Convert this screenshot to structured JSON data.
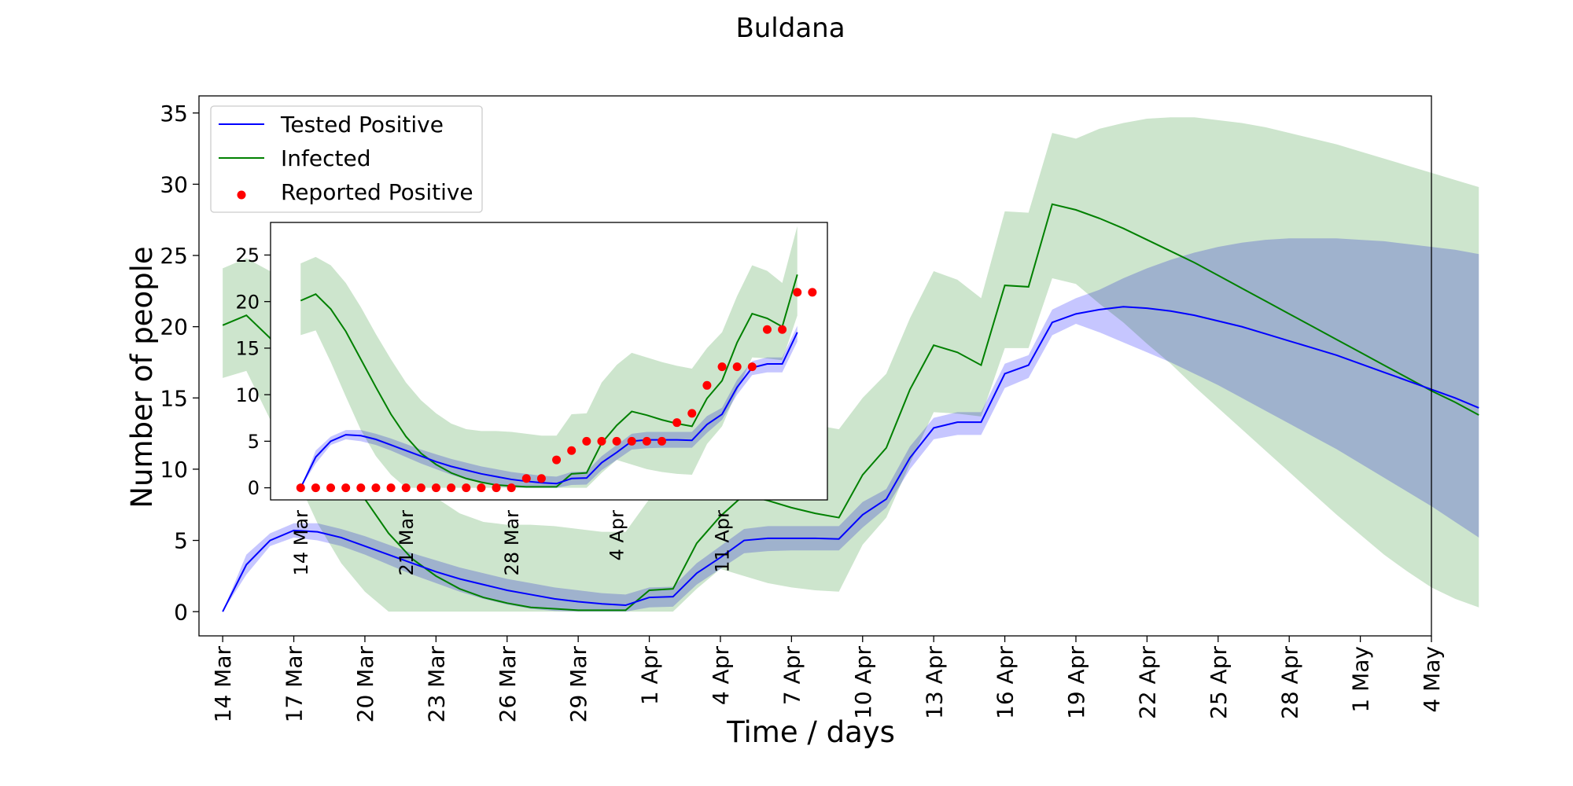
{
  "chart_data": [
    {
      "type": "line",
      "title": "Buldana",
      "xlabel": "Time / days",
      "ylabel": "Number of people",
      "xlim": [
        "2020-03-13",
        "2020-05-04"
      ],
      "ylim": [
        -1.7,
        36.2
      ],
      "x_ticks": [
        "14 Mar",
        "17 Mar",
        "20 Mar",
        "23 Mar",
        "26 Mar",
        "29 Mar",
        "1 Apr",
        "4 Apr",
        "7 Apr",
        "10 Apr",
        "13 Apr",
        "16 Apr",
        "19 Apr",
        "22 Apr",
        "25 Apr",
        "28 Apr",
        "1 May",
        "4 May"
      ],
      "y_ticks": [
        0,
        5,
        10,
        15,
        20,
        25,
        30,
        35
      ],
      "x_start": "2020-03-14",
      "legend": {
        "position": "top-left",
        "entries": [
          "Tested Positive",
          "Infected",
          "Reported Positive"
        ]
      },
      "colors": {
        "tested": "#0000ff",
        "tested_band": "#bcbcff",
        "infected": "#008000",
        "infected_band": "#cde5cd"
      },
      "series": [
        {
          "name": "Tested Positive",
          "values": [
            0,
            3.3,
            5.0,
            5.7,
            5.6,
            5.2,
            4.6,
            4.0,
            3.4,
            2.8,
            2.3,
            1.9,
            1.5,
            1.2,
            0.9,
            0.7,
            0.55,
            0.45,
            1.0,
            1.05,
            2.7,
            3.8,
            5.0,
            5.15,
            5.15,
            5.15,
            5.1,
            6.8,
            7.9,
            10.8,
            12.9,
            13.3,
            13.3,
            16.7,
            17.3,
            20.3,
            20.9,
            21.2,
            21.4,
            21.3,
            21.1,
            20.8,
            20.4,
            20.0,
            19.5,
            19.0,
            18.5,
            18.0,
            17.4,
            16.8,
            16.2,
            15.6,
            15.0,
            14.3
          ],
          "band_low": [
            0,
            2.6,
            4.6,
            5.2,
            5.0,
            4.6,
            4.0,
            3.3,
            2.6,
            2.0,
            1.4,
            0.9,
            0.5,
            0.2,
            0.05,
            0.0,
            0.0,
            0.0,
            0.3,
            0.35,
            1.9,
            3.0,
            4.1,
            4.25,
            4.3,
            4.3,
            4.3,
            5.9,
            7.3,
            10.0,
            12.1,
            12.4,
            12.4,
            15.7,
            16.4,
            19.4,
            20.2,
            19.6,
            18.9,
            18.2,
            17.5,
            16.7,
            15.9,
            15.0,
            14.1,
            13.2,
            12.3,
            11.4,
            10.4,
            9.4,
            8.4,
            7.4,
            6.3,
            5.2
          ],
          "band_high": [
            0,
            4.0,
            5.5,
            6.2,
            6.2,
            5.8,
            5.3,
            4.7,
            4.1,
            3.6,
            3.1,
            2.7,
            2.3,
            2.0,
            1.7,
            1.5,
            1.3,
            1.2,
            1.7,
            1.75,
            3.4,
            4.6,
            5.8,
            6.0,
            6.0,
            6.0,
            6.0,
            7.7,
            8.6,
            11.6,
            13.6,
            14.0,
            14.0,
            17.4,
            18.0,
            21.2,
            22.0,
            22.6,
            23.4,
            24.1,
            24.7,
            25.2,
            25.6,
            25.9,
            26.1,
            26.2,
            26.2,
            26.2,
            26.1,
            26.0,
            25.8,
            25.6,
            25.4,
            25.1
          ]
        },
        {
          "name": "Infected",
          "values": [
            20.1,
            20.8,
            19.2,
            16.8,
            13.8,
            10.8,
            7.9,
            5.5,
            3.7,
            2.5,
            1.6,
            1.0,
            0.6,
            0.3,
            0.2,
            0.1,
            0.1,
            0.1,
            1.5,
            1.6,
            4.8,
            6.7,
            8.2,
            7.8,
            7.3,
            6.9,
            6.6,
            9.6,
            11.5,
            15.6,
            18.7,
            18.2,
            17.3,
            22.9,
            22.8,
            28.6,
            28.2,
            27.6,
            26.9,
            26.1,
            25.3,
            24.5,
            23.6,
            22.7,
            21.8,
            20.9,
            20.0,
            19.1,
            18.2,
            17.3,
            16.4,
            15.5,
            14.7,
            13.8
          ],
          "band_low": [
            16.4,
            16.9,
            13.5,
            9.8,
            6.2,
            3.4,
            1.4,
            0.0,
            0.0,
            0.0,
            0.0,
            0.0,
            0.0,
            0.0,
            0.0,
            0.0,
            0.0,
            0.0,
            0.0,
            0.0,
            1.6,
            3.0,
            2.5,
            2.0,
            1.7,
            1.5,
            1.4,
            4.7,
            6.6,
            10.4,
            14.0,
            13.9,
            13.7,
            18.5,
            18.5,
            23.4,
            23.0,
            21.6,
            20.3,
            18.8,
            17.4,
            15.8,
            14.3,
            12.8,
            11.3,
            9.8,
            8.3,
            6.8,
            5.4,
            4.0,
            2.8,
            1.7,
            0.9,
            0.3
          ],
          "band_high": [
            24.1,
            24.8,
            23.9,
            22.0,
            19.4,
            16.5,
            13.8,
            11.3,
            9.4,
            8.0,
            6.9,
            6.3,
            6.1,
            6.1,
            6.0,
            5.8,
            5.6,
            5.6,
            7.9,
            8.0,
            11.3,
            13.2,
            14.5,
            14.0,
            13.5,
            13.1,
            12.8,
            15.0,
            16.7,
            20.6,
            23.9,
            23.3,
            22.0,
            28.1,
            28.0,
            33.6,
            33.2,
            33.9,
            34.3,
            34.6,
            34.7,
            34.7,
            34.5,
            34.3,
            34.0,
            33.6,
            33.2,
            32.8,
            32.3,
            31.8,
            31.3,
            30.8,
            30.3,
            29.8
          ]
        }
      ]
    },
    {
      "type": "scatter",
      "ylim": [
        -1.3,
        28.5
      ],
      "xlim": [
        "2020-03-12",
        "2020-04-18"
      ],
      "x_start": "2020-03-14",
      "x_ticks": [
        "14 Mar",
        "21 Mar",
        "28 Mar",
        "4 Apr",
        "11 Apr"
      ],
      "y_ticks": [
        0,
        5,
        10,
        15,
        20,
        25
      ],
      "series": [
        {
          "name": "Tested Positive",
          "values": [
            0,
            3.3,
            5.0,
            5.7,
            5.6,
            5.2,
            4.6,
            4.0,
            3.4,
            2.8,
            2.3,
            1.9,
            1.5,
            1.2,
            0.9,
            0.7,
            0.55,
            0.45,
            1.0,
            1.05,
            2.7,
            3.8,
            5.0,
            5.15,
            5.15,
            5.15,
            5.1,
            6.8,
            7.9,
            10.8,
            12.9,
            13.3,
            13.3,
            16.7
          ],
          "band_low": [
            0,
            2.6,
            4.6,
            5.2,
            5.0,
            4.6,
            4.0,
            3.3,
            2.6,
            2.0,
            1.4,
            0.9,
            0.5,
            0.2,
            0.05,
            0.0,
            0.0,
            0.0,
            0.3,
            0.35,
            1.9,
            3.0,
            4.1,
            4.25,
            4.3,
            4.3,
            4.3,
            5.9,
            7.3,
            10.0,
            12.1,
            12.4,
            12.4,
            15.7
          ],
          "band_high": [
            0,
            4.0,
            5.5,
            6.2,
            6.2,
            5.8,
            5.3,
            4.7,
            4.1,
            3.6,
            3.1,
            2.7,
            2.3,
            2.0,
            1.7,
            1.5,
            1.3,
            1.2,
            1.7,
            1.75,
            3.4,
            4.6,
            5.8,
            6.0,
            6.0,
            6.0,
            6.0,
            7.7,
            8.6,
            11.6,
            13.6,
            14.0,
            14.0,
            17.4
          ]
        },
        {
          "name": "Infected",
          "values": [
            20.1,
            20.8,
            19.2,
            16.8,
            13.8,
            10.8,
            7.9,
            5.5,
            3.7,
            2.5,
            1.6,
            1.0,
            0.6,
            0.3,
            0.2,
            0.1,
            0.1,
            0.1,
            1.5,
            1.6,
            4.8,
            6.7,
            8.2,
            7.8,
            7.3,
            6.9,
            6.6,
            9.6,
            11.5,
            15.6,
            18.7,
            18.2,
            17.3,
            22.9
          ],
          "band_low": [
            16.4,
            16.9,
            13.5,
            9.8,
            6.2,
            3.4,
            1.4,
            0.0,
            0.0,
            0.0,
            0.0,
            0.0,
            0.0,
            0.0,
            0.0,
            0.0,
            0.0,
            0.0,
            0.0,
            0.0,
            1.6,
            3.0,
            2.5,
            2.0,
            1.7,
            1.5,
            1.4,
            4.7,
            6.6,
            10.4,
            14.0,
            13.9,
            13.7,
            18.5
          ],
          "band_high": [
            24.1,
            24.8,
            23.9,
            22.0,
            19.4,
            16.5,
            13.8,
            11.3,
            9.4,
            8.0,
            6.9,
            6.3,
            6.1,
            6.1,
            6.0,
            5.8,
            5.6,
            5.6,
            7.9,
            8.0,
            11.3,
            13.2,
            14.5,
            14.0,
            13.5,
            13.1,
            12.8,
            15.0,
            16.7,
            20.6,
            23.9,
            23.3,
            22.0,
            28.1
          ]
        },
        {
          "name": "Reported Positive",
          "values": [
            0,
            0,
            0,
            0,
            0,
            0,
            0,
            0,
            0,
            0,
            0,
            0,
            0,
            0,
            0,
            1,
            1,
            3,
            4,
            5,
            5,
            5,
            5,
            5,
            5,
            7,
            8,
            11,
            13,
            13,
            13,
            17,
            17,
            21,
            21
          ]
        }
      ]
    }
  ]
}
